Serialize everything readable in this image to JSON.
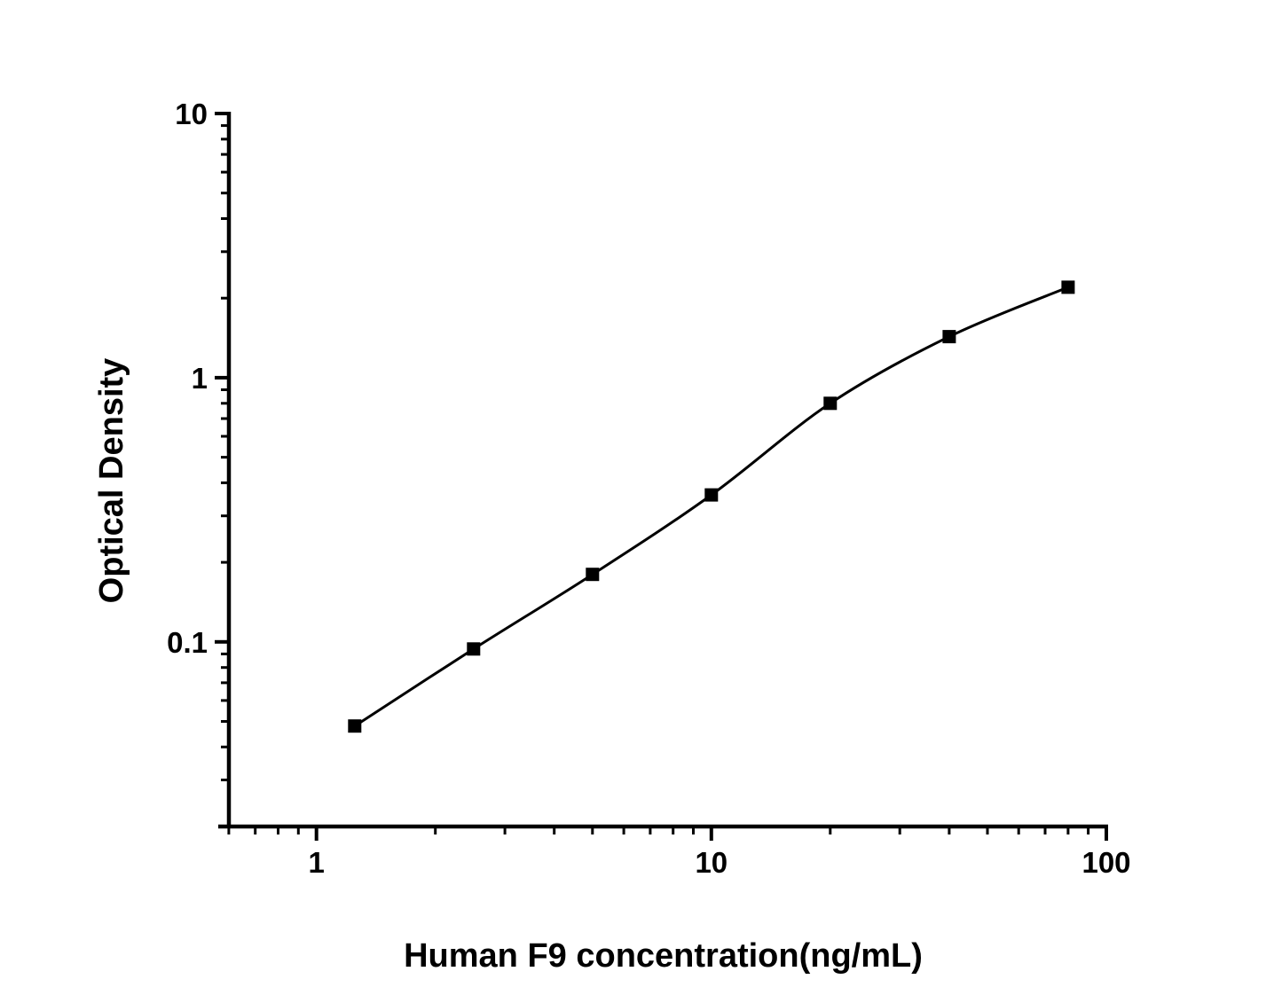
{
  "figure": {
    "background_color": "#ffffff"
  },
  "chart_data": {
    "type": "scatter",
    "subtype": "elisa-standard-curve",
    "title": "",
    "xlabel": "Human F9 concentration(ng/mL)",
    "ylabel": "Optical Density",
    "x_scale": "log",
    "y_scale": "log",
    "xlim": [
      0.57,
      100
    ],
    "ylim": [
      0.02,
      10
    ],
    "grid": false,
    "legend": "none",
    "marker": "filled-square",
    "line_style": "smooth-fit-curve",
    "series": [
      {
        "name": "standard-curve",
        "x": [
          1.25,
          2.5,
          5,
          10,
          20,
          40,
          80
        ],
        "y": [
          0.048,
          0.094,
          0.18,
          0.36,
          0.8,
          1.43,
          2.2
        ]
      }
    ],
    "x_ticks": [
      {
        "value": 1,
        "label": "1"
      },
      {
        "value": 10,
        "label": "10"
      },
      {
        "value": 100,
        "label": "100"
      }
    ],
    "y_ticks": [
      {
        "value": 0.1,
        "label": "0.1"
      },
      {
        "value": 1,
        "label": "1"
      },
      {
        "value": 10,
        "label": "10"
      }
    ],
    "colors": {
      "axis": "#000000",
      "text": "#000000",
      "curve": "#000000",
      "marker": "#000000",
      "background": "#ffffff"
    }
  }
}
